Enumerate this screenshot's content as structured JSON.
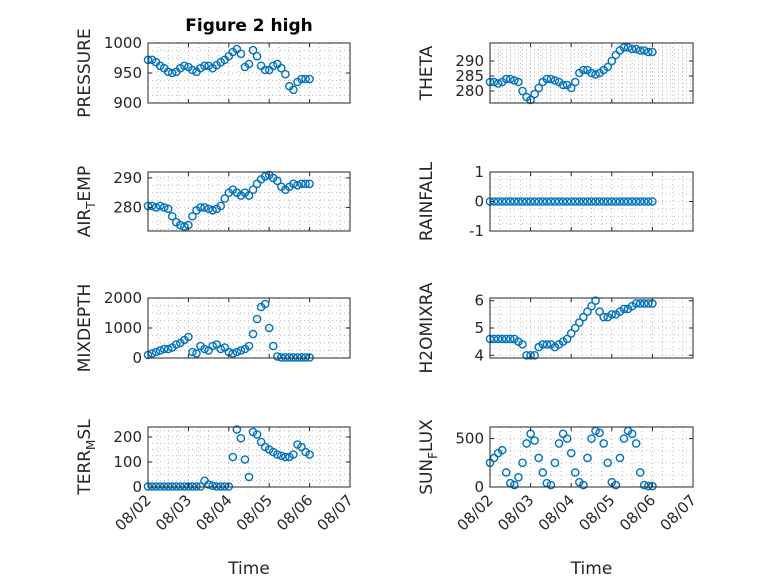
{
  "figure_title": "Figure 2 high",
  "colors": {
    "series": "#0072bd",
    "axes": "#262626",
    "grid": "#bdbdbd"
  },
  "x_common": {
    "label": "Time",
    "ticks": [
      0,
      1,
      2,
      3,
      4,
      5
    ],
    "tick_labels": [
      "08/02",
      "08/03",
      "08/04",
      "08/05",
      "08/06",
      "08/07"
    ]
  },
  "chart_data": [
    {
      "id": "pressure",
      "type": "scatter",
      "ylabel": "PRESSURE",
      "title": "Figure 2 high",
      "ylim": [
        900,
        1000
      ],
      "yticks": [
        900,
        950,
        1000
      ],
      "ytick_labels": [
        "900",
        "950",
        "1000"
      ],
      "xlim": [
        0,
        5
      ],
      "grid": true,
      "x": [
        0.0,
        0.1,
        0.2,
        0.3,
        0.4,
        0.5,
        0.6,
        0.7,
        0.8,
        0.9,
        1.0,
        1.1,
        1.2,
        1.3,
        1.4,
        1.5,
        1.6,
        1.7,
        1.8,
        1.9,
        2.0,
        2.1,
        2.2,
        2.3,
        2.4,
        2.5,
        2.6,
        2.7,
        2.8,
        2.9,
        3.0,
        3.1,
        3.2,
        3.3,
        3.4,
        3.5,
        3.6,
        3.7,
        3.8,
        3.9,
        4.0
      ],
      "y": [
        972,
        972,
        968,
        962,
        958,
        952,
        950,
        952,
        958,
        962,
        960,
        955,
        952,
        958,
        962,
        962,
        958,
        963,
        968,
        972,
        978,
        985,
        990,
        982,
        960,
        965,
        988,
        978,
        962,
        955,
        955,
        962,
        965,
        958,
        948,
        928,
        922,
        935,
        940,
        940,
        940
      ]
    },
    {
      "id": "theta",
      "type": "scatter",
      "ylabel": "THETA",
      "ylim": [
        276,
        296
      ],
      "yticks": [
        280,
        285,
        290
      ],
      "ytick_labels": [
        "280",
        "285",
        "290"
      ],
      "xlim": [
        0,
        5
      ],
      "grid": true,
      "x": [
        0.0,
        0.1,
        0.2,
        0.3,
        0.4,
        0.5,
        0.6,
        0.7,
        0.8,
        0.9,
        1.0,
        1.1,
        1.2,
        1.3,
        1.4,
        1.5,
        1.6,
        1.7,
        1.8,
        1.9,
        2.0,
        2.1,
        2.2,
        2.3,
        2.4,
        2.5,
        2.6,
        2.7,
        2.8,
        2.9,
        3.0,
        3.1,
        3.2,
        3.3,
        3.4,
        3.5,
        3.6,
        3.7,
        3.8,
        3.9,
        4.0
      ],
      "y": [
        283,
        283,
        282.5,
        283,
        284,
        284,
        283.5,
        283,
        280,
        278,
        277,
        279,
        281,
        283,
        284,
        284,
        283.5,
        283,
        282,
        282,
        281,
        283,
        286,
        287,
        287,
        286,
        285.5,
        286,
        287,
        288,
        290,
        292,
        293.5,
        294.5,
        294.5,
        294,
        294,
        293.5,
        293.5,
        293,
        293
      ]
    },
    {
      "id": "air-temp",
      "type": "scatter",
      "ylabel": "AIR_TEMP",
      "ylim": [
        272,
        292
      ],
      "yticks": [
        280,
        290
      ],
      "ytick_labels": [
        "280",
        "290"
      ],
      "xlim": [
        0,
        5
      ],
      "grid": true,
      "x": [
        0.0,
        0.1,
        0.2,
        0.3,
        0.4,
        0.5,
        0.6,
        0.7,
        0.8,
        0.9,
        1.0,
        1.1,
        1.2,
        1.3,
        1.4,
        1.5,
        1.6,
        1.7,
        1.8,
        1.9,
        2.0,
        2.1,
        2.2,
        2.3,
        2.4,
        2.5,
        2.6,
        2.7,
        2.8,
        2.9,
        3.0,
        3.1,
        3.2,
        3.3,
        3.4,
        3.5,
        3.6,
        3.7,
        3.8,
        3.9,
        4.0
      ],
      "y": [
        280.5,
        280.5,
        280,
        280.5,
        280,
        279.5,
        277,
        275,
        274,
        273.5,
        274,
        277,
        279,
        280,
        280,
        279.5,
        279,
        279.5,
        280.5,
        283,
        285,
        286,
        285,
        284,
        285,
        284,
        286,
        288,
        289.5,
        290.5,
        291,
        290,
        289,
        287,
        286,
        287,
        288,
        287.5,
        288,
        288,
        288
      ]
    },
    {
      "id": "rainfall",
      "type": "scatter",
      "ylabel": "RAINFALL",
      "ylim": [
        -1,
        1
      ],
      "yticks": [
        -1,
        0,
        1
      ],
      "ytick_labels": [
        "-1",
        "0",
        "1"
      ],
      "xlim": [
        0,
        5
      ],
      "grid": true,
      "x": [
        0.0,
        0.1,
        0.2,
        0.3,
        0.4,
        0.5,
        0.6,
        0.7,
        0.8,
        0.9,
        1.0,
        1.1,
        1.2,
        1.3,
        1.4,
        1.5,
        1.6,
        1.7,
        1.8,
        1.9,
        2.0,
        2.1,
        2.2,
        2.3,
        2.4,
        2.5,
        2.6,
        2.7,
        2.8,
        2.9,
        3.0,
        3.1,
        3.2,
        3.3,
        3.4,
        3.5,
        3.6,
        3.7,
        3.8,
        3.9,
        4.0
      ],
      "y": [
        0,
        0,
        0,
        0,
        0,
        0,
        0,
        0,
        0,
        0,
        0,
        0,
        0,
        0,
        0,
        0,
        0,
        0,
        0,
        0,
        0,
        0,
        0,
        0,
        0,
        0,
        0,
        0,
        0,
        0,
        0,
        0,
        0,
        0,
        0,
        0,
        0,
        0,
        0,
        0,
        0
      ]
    },
    {
      "id": "mixdepth",
      "type": "scatter",
      "ylabel": "MIXDEPTH",
      "ylim": [
        0,
        2000
      ],
      "yticks": [
        0,
        1000,
        2000
      ],
      "ytick_labels": [
        "0",
        "1000",
        "2000"
      ],
      "xlim": [
        0,
        5
      ],
      "grid": true,
      "x": [
        0.0,
        0.1,
        0.2,
        0.3,
        0.4,
        0.5,
        0.6,
        0.7,
        0.8,
        0.9,
        1.0,
        1.1,
        1.2,
        1.3,
        1.4,
        1.5,
        1.6,
        1.7,
        1.8,
        1.9,
        2.0,
        2.1,
        2.2,
        2.3,
        2.4,
        2.5,
        2.6,
        2.7,
        2.8,
        2.9,
        3.0,
        3.1,
        3.2,
        3.3,
        3.4,
        3.5,
        3.6,
        3.7,
        3.8,
        3.9,
        4.0
      ],
      "y": [
        100,
        150,
        200,
        250,
        300,
        300,
        350,
        450,
        500,
        600,
        700,
        200,
        150,
        400,
        300,
        250,
        400,
        450,
        300,
        350,
        200,
        150,
        200,
        250,
        300,
        400,
        800,
        1300,
        1700,
        1800,
        1000,
        400,
        50,
        20,
        20,
        20,
        20,
        20,
        20,
        20,
        20
      ]
    },
    {
      "id": "h2omixra",
      "type": "scatter",
      "ylabel": "H2OMIXRA",
      "ylim": [
        3.9,
        6.1
      ],
      "yticks": [
        4,
        5,
        6
      ],
      "ytick_labels": [
        "4",
        "5",
        "6"
      ],
      "xlim": [
        0,
        5
      ],
      "grid": true,
      "x": [
        0.0,
        0.1,
        0.2,
        0.3,
        0.4,
        0.5,
        0.6,
        0.7,
        0.8,
        0.9,
        1.0,
        1.1,
        1.2,
        1.3,
        1.4,
        1.5,
        1.6,
        1.7,
        1.8,
        1.9,
        2.0,
        2.1,
        2.2,
        2.3,
        2.4,
        2.5,
        2.6,
        2.7,
        2.8,
        2.9,
        3.0,
        3.1,
        3.2,
        3.3,
        3.4,
        3.5,
        3.6,
        3.7,
        3.8,
        3.9,
        4.0
      ],
      "y": [
        4.6,
        4.6,
        4.6,
        4.6,
        4.6,
        4.6,
        4.6,
        4.5,
        4.4,
        4.0,
        4.0,
        4.0,
        4.3,
        4.4,
        4.4,
        4.4,
        4.3,
        4.4,
        4.5,
        4.6,
        4.8,
        5.0,
        5.2,
        5.4,
        5.6,
        5.8,
        6.0,
        5.6,
        5.4,
        5.4,
        5.5,
        5.5,
        5.6,
        5.7,
        5.7,
        5.8,
        5.9,
        5.9,
        5.9,
        5.9,
        5.9
      ]
    },
    {
      "id": "terr-msl",
      "type": "scatter",
      "ylabel": "TERR_MSL",
      "ylim": [
        0,
        240
      ],
      "yticks": [
        0,
        100,
        200
      ],
      "ytick_labels": [
        "0",
        "100",
        "200"
      ],
      "xlim": [
        0,
        5
      ],
      "grid": true,
      "x": [
        0.0,
        0.1,
        0.2,
        0.3,
        0.4,
        0.5,
        0.6,
        0.7,
        0.8,
        0.9,
        1.0,
        1.1,
        1.2,
        1.3,
        1.4,
        1.5,
        1.6,
        1.7,
        1.8,
        1.9,
        2.0,
        2.1,
        2.2,
        2.3,
        2.4,
        2.5,
        2.6,
        2.7,
        2.8,
        2.9,
        3.0,
        3.1,
        3.2,
        3.3,
        3.4,
        3.5,
        3.6,
        3.7,
        3.8,
        3.9,
        4.0
      ],
      "y": [
        2,
        2,
        2,
        2,
        2,
        2,
        2,
        2,
        2,
        2,
        2,
        2,
        2,
        2,
        25,
        10,
        5,
        2,
        2,
        2,
        2,
        120,
        230,
        195,
        110,
        40,
        220,
        210,
        180,
        160,
        150,
        140,
        130,
        125,
        120,
        120,
        130,
        170,
        160,
        140,
        130
      ]
    },
    {
      "id": "sun-flux",
      "type": "scatter",
      "ylabel": "SUN_FLUX",
      "ylim": [
        0,
        620
      ],
      "yticks": [
        0,
        500
      ],
      "ytick_labels": [
        "0",
        "500"
      ],
      "xlim": [
        0,
        5
      ],
      "grid": true,
      "x": [
        0.0,
        0.1,
        0.2,
        0.3,
        0.4,
        0.5,
        0.6,
        0.7,
        0.8,
        0.9,
        1.0,
        1.1,
        1.2,
        1.3,
        1.4,
        1.5,
        1.6,
        1.7,
        1.8,
        1.9,
        2.0,
        2.1,
        2.2,
        2.3,
        2.4,
        2.5,
        2.6,
        2.7,
        2.8,
        2.9,
        3.0,
        3.1,
        3.2,
        3.3,
        3.4,
        3.5,
        3.6,
        3.7,
        3.8,
        3.9,
        4.0
      ],
      "y": [
        250,
        300,
        350,
        380,
        150,
        40,
        20,
        100,
        250,
        450,
        550,
        480,
        300,
        150,
        40,
        20,
        250,
        450,
        550,
        500,
        350,
        150,
        50,
        20,
        300,
        500,
        580,
        560,
        450,
        250,
        50,
        20,
        300,
        500,
        580,
        550,
        450,
        150,
        20,
        10,
        10
      ]
    }
  ]
}
